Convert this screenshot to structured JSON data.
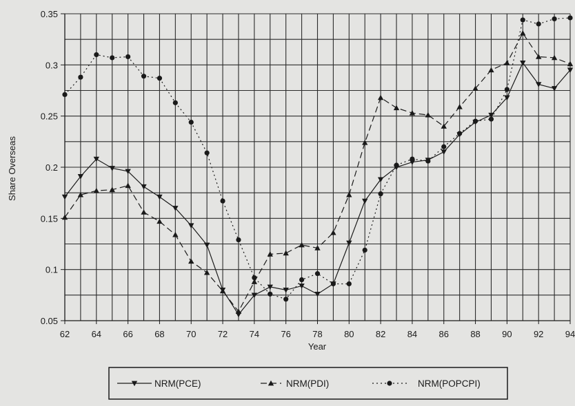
{
  "chart_data": {
    "type": "line",
    "xlabel": "Year",
    "ylabel": "Share Overseas",
    "xlim": [
      62,
      94
    ],
    "ylim": [
      0.05,
      0.35
    ],
    "grid": true,
    "legend_position": "bottom",
    "x_ticks": [
      "62",
      "64",
      "66",
      "68",
      "70",
      "72",
      "74",
      "76",
      "78",
      "80",
      "82",
      "84",
      "86",
      "88",
      "90",
      "92",
      "94"
    ],
    "y_ticks": [
      "0.05",
      "0.1",
      "0.15",
      "0.2",
      "0.25",
      "0.3",
      "0.35"
    ],
    "x": [
      62,
      63,
      64,
      65,
      66,
      67,
      68,
      69,
      70,
      71,
      72,
      73,
      74,
      75,
      76,
      77,
      78,
      79,
      80,
      81,
      82,
      83,
      84,
      85,
      86,
      87,
      88,
      89,
      90,
      91,
      92,
      93,
      94
    ],
    "series": [
      {
        "name": "NRM(PCE)",
        "line_style": "solid",
        "marker": "triangle-down",
        "values": [
          0.171,
          0.191,
          0.208,
          0.199,
          0.196,
          0.181,
          0.171,
          0.16,
          0.143,
          0.124,
          0.08,
          0.056,
          0.075,
          0.083,
          0.08,
          0.084,
          0.076,
          0.086,
          0.126,
          0.167,
          0.188,
          0.2,
          0.205,
          0.207,
          0.215,
          0.232,
          0.244,
          0.251,
          0.268,
          0.302,
          0.281,
          0.277,
          0.295
        ]
      },
      {
        "name": "NRM(PDI)",
        "line_style": "dashed",
        "marker": "triangle-up",
        "values": [
          0.151,
          0.173,
          0.177,
          0.178,
          0.182,
          0.156,
          0.147,
          0.134,
          0.108,
          0.097,
          0.079,
          0.059,
          0.088,
          0.115,
          0.116,
          0.124,
          0.121,
          0.136,
          0.173,
          0.224,
          0.268,
          0.258,
          0.253,
          0.251,
          0.24,
          0.259,
          0.277,
          0.295,
          0.302,
          0.331,
          0.308,
          0.307,
          0.301
        ]
      },
      {
        "name": "NRM(POPCPI)",
        "line_style": "dotted",
        "marker": "circle",
        "values": [
          0.271,
          0.288,
          0.31,
          0.307,
          0.308,
          0.289,
          0.287,
          0.263,
          0.244,
          0.214,
          0.167,
          0.129,
          0.092,
          0.076,
          0.071,
          0.09,
          0.096,
          0.086,
          0.086,
          0.119,
          0.174,
          0.202,
          0.208,
          0.206,
          0.22,
          0.233,
          0.245,
          0.247,
          0.276,
          0.344,
          0.34,
          0.345,
          0.346
        ]
      }
    ]
  },
  "colors": {
    "background": "#e4e4e2",
    "ink": "#1a1a1a",
    "grid": "#2a2a2a"
  }
}
